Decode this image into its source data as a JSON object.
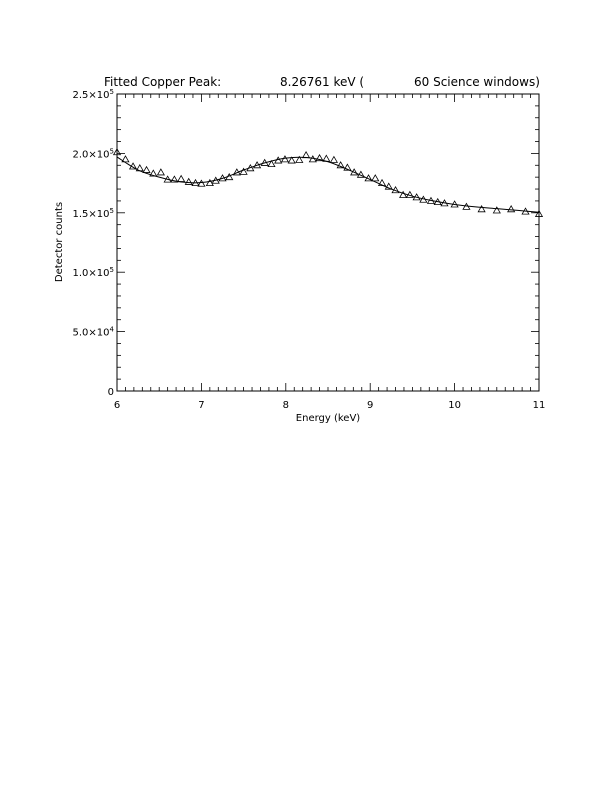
{
  "chart_data": {
    "type": "scatter",
    "title": {
      "prefix": "Fitted Copper Peak:",
      "value": "8.26761 keV (",
      "suffix": "60 Science windows)"
    },
    "xlabel": "Energy (keV)",
    "ylabel": "Detector counts",
    "xlim": [
      6,
      11
    ],
    "ylim": [
      0,
      250000
    ],
    "x_ticks": [
      6,
      7,
      8,
      9,
      10,
      11
    ],
    "x_tick_labels": [
      "6",
      "7",
      "8",
      "9",
      "10",
      "11"
    ],
    "y_ticks": [
      0,
      50000,
      100000,
      150000,
      200000,
      250000
    ],
    "y_tick_labels": [
      {
        "mantissa": "0",
        "exp": ""
      },
      {
        "mantissa": "5.0×10",
        "exp": "4"
      },
      {
        "mantissa": "1.0×10",
        "exp": "5"
      },
      {
        "mantissa": "1.5×10",
        "exp": "5"
      },
      {
        "mantissa": "2.0×10",
        "exp": "5"
      },
      {
        "mantissa": "2.5×10",
        "exp": "5"
      }
    ],
    "grid": false,
    "series": [
      {
        "kind": "points",
        "marker": "triangle",
        "x": [
          6.0,
          6.1,
          6.19,
          6.27,
          6.35,
          6.43,
          6.52,
          6.6,
          6.68,
          6.76,
          6.85,
          6.93,
          7.0,
          7.1,
          7.17,
          7.25,
          7.33,
          7.42,
          7.5,
          7.58,
          7.66,
          7.75,
          7.83,
          7.91,
          7.99,
          8.07,
          8.16,
          8.24,
          8.32,
          8.4,
          8.48,
          8.57,
          8.65,
          8.73,
          8.81,
          8.89,
          8.98,
          9.06,
          9.14,
          9.22,
          9.3,
          9.39,
          9.47,
          9.55,
          9.63,
          9.72,
          9.8,
          9.88,
          10.0,
          10.14,
          10.32,
          10.5,
          10.67,
          10.84,
          11.0
        ],
        "y": [
          201000,
          195000,
          189000,
          187500,
          186000,
          183000,
          184000,
          178000,
          178000,
          178500,
          176000,
          175000,
          174500,
          175000,
          177000,
          179000,
          180000,
          184000,
          184500,
          187500,
          190000,
          192000,
          191000,
          194000,
          195000,
          194000,
          194500,
          198500,
          195000,
          196000,
          195500,
          194500,
          190000,
          188000,
          184000,
          182000,
          179000,
          179000,
          175000,
          172000,
          169000,
          165000,
          165000,
          163000,
          161000,
          160000,
          159000,
          158000,
          157000,
          155000,
          153000,
          152000,
          153000,
          151000,
          149000
        ]
      },
      {
        "kind": "line",
        "x": [
          6.0,
          6.25,
          6.5,
          6.75,
          7.0,
          7.25,
          7.5,
          7.75,
          8.0,
          8.25,
          8.5,
          8.75,
          9.0,
          9.25,
          9.5,
          9.75,
          10.0,
          10.25,
          10.5,
          10.75,
          11.0
        ],
        "y": [
          197000,
          186000,
          180000,
          176000,
          175500,
          179000,
          186000,
          192000,
          196000,
          196500,
          193000,
          186000,
          178000,
          170000,
          164000,
          160000,
          157000,
          155000,
          153500,
          152000,
          150500
        ]
      }
    ]
  }
}
